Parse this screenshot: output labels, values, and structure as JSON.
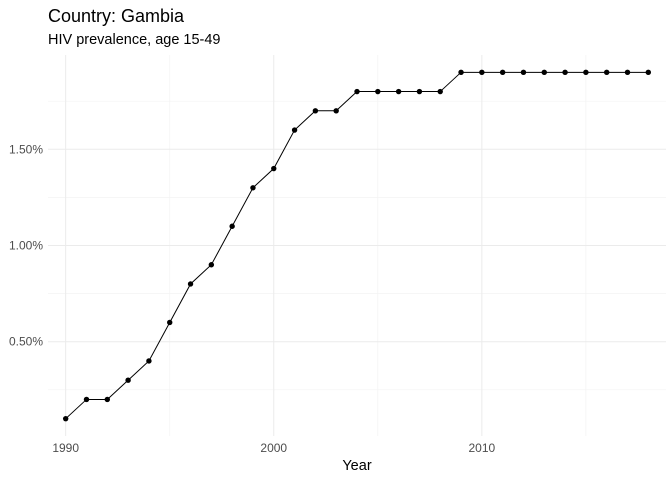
{
  "chart_data": {
    "type": "line",
    "title": "Country: Gambia",
    "subtitle": "HIV prevalence, age 15-49",
    "xlabel": "Year",
    "ylabel": "",
    "x": [
      1990,
      1991,
      1992,
      1993,
      1994,
      1995,
      1996,
      1997,
      1998,
      1999,
      2000,
      2001,
      2002,
      2003,
      2004,
      2005,
      2006,
      2007,
      2008,
      2009,
      2010,
      2011,
      2012,
      2013,
      2014,
      2015,
      2016,
      2017,
      2018
    ],
    "series": [
      {
        "values": [
          0.1,
          0.2,
          0.2,
          0.3,
          0.4,
          0.6,
          0.8,
          0.9,
          1.1,
          1.3,
          1.4,
          1.6,
          1.7,
          1.7,
          1.8,
          1.8,
          1.8,
          1.8,
          1.8,
          1.9,
          1.9,
          1.9,
          1.9,
          1.9,
          1.9,
          1.9,
          1.9,
          1.9,
          1.9
        ]
      }
    ],
    "x_ticks": [
      1990,
      2000,
      2010
    ],
    "x_tick_labels": [
      "1990",
      "2000",
      "2010"
    ],
    "y_ticks": [
      0.5,
      1.0,
      1.5
    ],
    "y_tick_labels": [
      "0.50%",
      "1.00%",
      "1.50%"
    ],
    "xlim": [
      1989.15,
      2018.85
    ],
    "ylim": [
      0.01,
      1.99
    ],
    "grid": true,
    "line_color": "#000000",
    "point_color": "#000000",
    "grid_color": "#ebebeb"
  }
}
